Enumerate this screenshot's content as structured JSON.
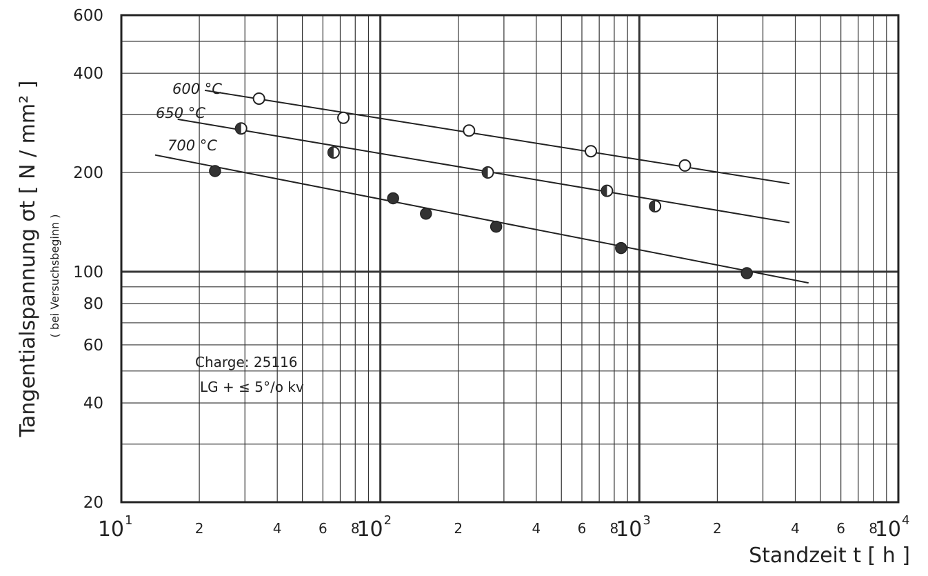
{
  "chart_data": {
    "type": "scatter",
    "title": "",
    "xlabel": "Standzeit  t [ h ]",
    "ylabel": "Tangentialspannung  σt [ N / mm² ]",
    "ylabel_sub": "( bei Versuchsbeginn )",
    "xscale": "log",
    "yscale": "log",
    "xlim": [
      10,
      10000
    ],
    "ylim": [
      20,
      600
    ],
    "grid": true,
    "y_ticks": [
      "20",
      "40",
      "60",
      "80",
      "100",
      "200",
      "400",
      "600"
    ],
    "y_tick_values": [
      20,
      40,
      60,
      80,
      100,
      200,
      400,
      600
    ],
    "x_tick_minor_labels": [
      "2",
      "4",
      "6",
      "8",
      "2",
      "4",
      "6",
      "8",
      "2",
      "4",
      "6",
      "8"
    ],
    "x_tick_minor_values": [
      20,
      40,
      60,
      80,
      200,
      400,
      600,
      800,
      2000,
      4000,
      6000,
      8000
    ],
    "x_tick_major": [
      {
        "base": "10",
        "exp": "1",
        "value": 10
      },
      {
        "base": "10",
        "exp": "2",
        "value": 100
      },
      {
        "base": "10",
        "exp": "3",
        "value": 1000
      },
      {
        "base": "10",
        "exp": "4",
        "value": 10000
      }
    ],
    "annotation": [
      "Charge:  25116",
      "LG + ≤ 5°/o kv"
    ],
    "series": [
      {
        "name": "600 °C",
        "marker": "open",
        "points": [
          [
            34,
            335
          ],
          [
            72,
            293
          ],
          [
            220,
            268
          ],
          [
            650,
            232
          ],
          [
            1500,
            210
          ]
        ],
        "fit": [
          [
            21,
            355
          ],
          [
            3800,
            185
          ]
        ]
      },
      {
        "name": "650 °C",
        "marker": "half",
        "points": [
          [
            29,
            272
          ],
          [
            66,
            230
          ],
          [
            260,
            200
          ],
          [
            750,
            176
          ],
          [
            1150,
            158
          ]
        ],
        "fit": [
          [
            16.5,
            290
          ],
          [
            3800,
            141
          ]
        ]
      },
      {
        "name": "700 °C",
        "marker": "filled",
        "points": [
          [
            23,
            202
          ],
          [
            112,
            167
          ],
          [
            150,
            150
          ],
          [
            280,
            137
          ],
          [
            850,
            118
          ],
          [
            2600,
            99
          ]
        ],
        "fit": [
          [
            13.5,
            226
          ],
          [
            4500,
            92.5
          ]
        ]
      }
    ]
  }
}
